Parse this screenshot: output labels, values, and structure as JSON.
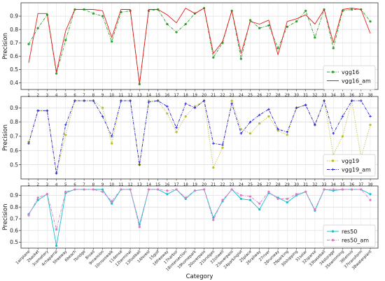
{
  "chart_data": [
    {
      "type": "line",
      "ylabel": "Precision",
      "xlabel": "",
      "ylim": [
        0.35,
        1.0
      ],
      "yticks": [
        0.4,
        0.5,
        0.6,
        0.7,
        0.8,
        0.9
      ],
      "grid": true,
      "legend_position": "right",
      "x": [
        1,
        2,
        3,
        4,
        5,
        6,
        7,
        8,
        9,
        10,
        11,
        12,
        13,
        14,
        15,
        16,
        17,
        18,
        19,
        20,
        21,
        22,
        23,
        24,
        25,
        26,
        27,
        28,
        29,
        30,
        31,
        32,
        33,
        34,
        35,
        36,
        37,
        38
      ],
      "series": [
        {
          "name": "vgg16",
          "color": "#2ca02c",
          "style": "dash-dot",
          "marker": "dot",
          "values": [
            0.69,
            0.81,
            0.91,
            0.47,
            0.72,
            0.95,
            0.95,
            0.92,
            0.9,
            0.71,
            0.93,
            0.94,
            0.39,
            0.94,
            0.95,
            0.84,
            0.78,
            0.84,
            0.92,
            0.96,
            0.59,
            0.7,
            0.94,
            0.58,
            0.87,
            0.81,
            0.83,
            0.66,
            0.82,
            0.86,
            0.94,
            0.74,
            0.95,
            0.66,
            0.94,
            0.95,
            0.95,
            0.86
          ]
        },
        {
          "name": "vgg16_am",
          "color": "#e8191c",
          "style": "solid",
          "marker": "none",
          "values": [
            0.55,
            0.92,
            0.92,
            0.48,
            0.79,
            0.95,
            0.95,
            0.95,
            0.94,
            0.74,
            0.95,
            0.95,
            0.39,
            0.95,
            0.95,
            0.91,
            0.85,
            0.96,
            0.92,
            0.96,
            0.62,
            0.71,
            0.94,
            0.62,
            0.86,
            0.84,
            0.87,
            0.61,
            0.86,
            0.88,
            0.91,
            0.84,
            0.95,
            0.7,
            0.95,
            0.96,
            0.95,
            0.77
          ]
        }
      ]
    },
    {
      "type": "line",
      "ylabel": "Precision",
      "xlabel": "",
      "ylim": [
        0.4,
        0.98
      ],
      "yticks": [
        0.5,
        0.6,
        0.7,
        0.8,
        0.9
      ],
      "grid": true,
      "legend_position": "bottom-right",
      "x": [
        1,
        2,
        3,
        4,
        5,
        6,
        7,
        8,
        9,
        10,
        11,
        12,
        13,
        14,
        15,
        16,
        17,
        18,
        19,
        20,
        21,
        22,
        23,
        24,
        25,
        26,
        27,
        28,
        29,
        30,
        31,
        32,
        33,
        34,
        35,
        36,
        37,
        38
      ],
      "series": [
        {
          "name": "vgg19",
          "color": "#bcbd22",
          "style": "dotted",
          "marker": "dot",
          "values": [
            0.66,
            0.88,
            0.88,
            0.44,
            0.71,
            0.95,
            0.95,
            0.95,
            0.9,
            0.65,
            0.95,
            0.95,
            0.5,
            0.95,
            0.95,
            0.86,
            0.73,
            0.84,
            0.91,
            0.95,
            0.48,
            0.62,
            0.95,
            0.75,
            0.72,
            0.79,
            0.84,
            0.74,
            0.71,
            0.9,
            0.92,
            0.78,
            0.95,
            0.57,
            0.7,
            0.95,
            0.55,
            0.78
          ]
        },
        {
          "name": "vgg19_am",
          "color": "#1f1fd6",
          "style": "dash-dot",
          "marker": "plus",
          "values": [
            0.65,
            0.88,
            0.88,
            0.44,
            0.78,
            0.95,
            0.95,
            0.95,
            0.84,
            0.7,
            0.95,
            0.95,
            0.5,
            0.94,
            0.95,
            0.91,
            0.76,
            0.93,
            0.9,
            0.95,
            0.65,
            0.64,
            0.93,
            0.72,
            0.8,
            0.85,
            0.89,
            0.75,
            0.73,
            0.9,
            0.92,
            0.78,
            0.95,
            0.72,
            0.84,
            0.95,
            0.95,
            0.84
          ]
        }
      ]
    },
    {
      "type": "line",
      "ylabel": "Precision",
      "xlabel": "Category",
      "ylim": [
        0.45,
        0.98
      ],
      "yticks": [
        0.5,
        0.6,
        0.7,
        0.8,
        0.9
      ],
      "grid": true,
      "legend_position": "bottom-right",
      "categories": [
        "1airplane",
        "2basket",
        "3cemetery",
        "4chaparral",
        "5freeway",
        "6beach",
        "7bridge",
        "8road",
        "9mansion",
        "10crosswalk",
        "11dense",
        "12terminal",
        "13football",
        "14forest",
        "15golf",
        "16freeway",
        "17harbor",
        "18intersection",
        "19homepark",
        "20overpass",
        "21bridges",
        "22oilwell",
        "23overpass",
        "24parkinglot",
        "25place",
        "26railway",
        "27river",
        "28runway",
        "29parking",
        "30shipping",
        "31solar",
        "32sparse",
        "33baseball",
        "34storage",
        "35swimming",
        "36tennis",
        "37transform",
        "38waterplant"
      ],
      "x": [
        1,
        2,
        3,
        4,
        5,
        6,
        7,
        8,
        9,
        10,
        11,
        12,
        13,
        14,
        15,
        16,
        17,
        18,
        19,
        20,
        21,
        22,
        23,
        24,
        25,
        26,
        27,
        28,
        29,
        30,
        31,
        32,
        33,
        34,
        35,
        36,
        37,
        38
      ],
      "series": [
        {
          "name": "res50",
          "color": "#17becf",
          "style": "solid",
          "marker": "dot",
          "values": [
            0.74,
            0.86,
            0.91,
            0.47,
            0.92,
            0.95,
            0.95,
            0.95,
            0.95,
            0.83,
            0.95,
            0.95,
            0.65,
            0.95,
            0.95,
            0.91,
            0.95,
            0.87,
            0.94,
            0.95,
            0.71,
            0.85,
            0.95,
            0.87,
            0.86,
            0.78,
            0.92,
            0.88,
            0.84,
            0.9,
            0.93,
            0.77,
            0.95,
            0.94,
            0.95,
            0.95,
            0.95,
            0.91
          ]
        },
        {
          "name": "res50_am",
          "color": "#e377c2",
          "style": "dash-dot",
          "marker": "dot",
          "values": [
            0.73,
            0.88,
            0.91,
            0.61,
            0.93,
            0.95,
            0.95,
            0.95,
            0.93,
            0.85,
            0.95,
            0.95,
            0.63,
            0.95,
            0.95,
            0.94,
            0.95,
            0.88,
            0.94,
            0.95,
            0.69,
            0.86,
            0.95,
            0.9,
            0.89,
            0.83,
            0.93,
            0.87,
            0.87,
            0.91,
            0.93,
            0.78,
            0.95,
            0.95,
            0.95,
            0.95,
            0.95,
            0.86
          ]
        }
      ]
    }
  ]
}
